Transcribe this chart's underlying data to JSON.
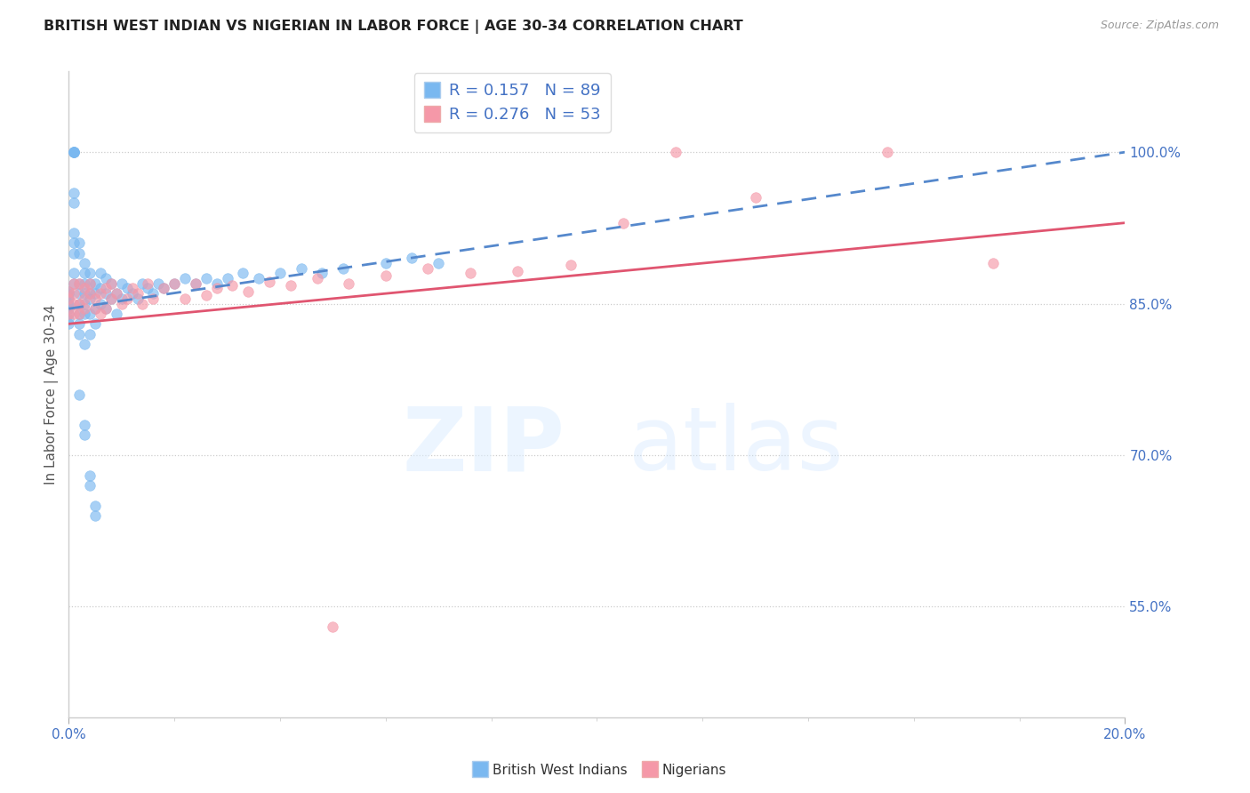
{
  "title": "BRITISH WEST INDIAN VS NIGERIAN IN LABOR FORCE | AGE 30-34 CORRELATION CHART",
  "source": "Source: ZipAtlas.com",
  "ylabel": "In Labor Force | Age 30-34",
  "r_bwi": 0.157,
  "n_bwi": 89,
  "r_nig": 0.276,
  "n_nig": 53,
  "blue_color": "#7ab8f0",
  "pink_color": "#f598a8",
  "blue_line_color": "#5588cc",
  "pink_line_color": "#e05570",
  "right_yticks": [
    0.55,
    0.7,
    0.85,
    1.0
  ],
  "right_ytick_labels": [
    "55.0%",
    "70.0%",
    "85.0%",
    "100.0%"
  ],
  "xlim": [
    0.0,
    0.2
  ],
  "ylim": [
    0.44,
    1.08
  ],
  "bwi_x": [
    0.0,
    0.0,
    0.0,
    0.0,
    0.0,
    0.0,
    0.0,
    0.0,
    0.0,
    0.0,
    0.001,
    0.001,
    0.001,
    0.001,
    0.001,
    0.001,
    0.001,
    0.001,
    0.001,
    0.001,
    0.001,
    0.001,
    0.002,
    0.002,
    0.002,
    0.002,
    0.002,
    0.002,
    0.002,
    0.002,
    0.003,
    0.003,
    0.003,
    0.003,
    0.003,
    0.003,
    0.003,
    0.004,
    0.004,
    0.004,
    0.004,
    0.004,
    0.004,
    0.005,
    0.005,
    0.005,
    0.005,
    0.006,
    0.006,
    0.006,
    0.007,
    0.007,
    0.007,
    0.008,
    0.008,
    0.009,
    0.009,
    0.01,
    0.01,
    0.011,
    0.012,
    0.013,
    0.014,
    0.015,
    0.016,
    0.017,
    0.018,
    0.02,
    0.022,
    0.024,
    0.026,
    0.028,
    0.03,
    0.033,
    0.036,
    0.04,
    0.044,
    0.048,
    0.052,
    0.06,
    0.065,
    0.07,
    0.002,
    0.003,
    0.003,
    0.004,
    0.004,
    0.005,
    0.005
  ],
  "bwi_y": [
    0.86,
    0.85,
    0.84,
    0.855,
    0.845,
    0.83,
    0.858,
    0.835,
    0.848,
    0.862,
    1.0,
    1.0,
    1.0,
    1.0,
    1.0,
    0.96,
    0.95,
    0.92,
    0.91,
    0.9,
    0.88,
    0.87,
    0.87,
    0.86,
    0.85,
    0.84,
    0.83,
    0.82,
    0.9,
    0.91,
    0.88,
    0.86,
    0.85,
    0.84,
    0.81,
    0.87,
    0.89,
    0.87,
    0.855,
    0.84,
    0.82,
    0.86,
    0.88,
    0.86,
    0.845,
    0.83,
    0.87,
    0.865,
    0.85,
    0.88,
    0.86,
    0.845,
    0.875,
    0.87,
    0.855,
    0.86,
    0.84,
    0.855,
    0.87,
    0.865,
    0.86,
    0.855,
    0.87,
    0.865,
    0.86,
    0.87,
    0.865,
    0.87,
    0.875,
    0.87,
    0.875,
    0.87,
    0.875,
    0.88,
    0.875,
    0.88,
    0.885,
    0.88,
    0.885,
    0.89,
    0.895,
    0.89,
    0.76,
    0.73,
    0.72,
    0.68,
    0.67,
    0.65,
    0.64
  ],
  "nig_x": [
    0.0,
    0.0,
    0.0,
    0.001,
    0.001,
    0.001,
    0.001,
    0.002,
    0.002,
    0.002,
    0.003,
    0.003,
    0.003,
    0.004,
    0.004,
    0.005,
    0.005,
    0.006,
    0.006,
    0.007,
    0.007,
    0.008,
    0.008,
    0.009,
    0.01,
    0.011,
    0.012,
    0.013,
    0.014,
    0.015,
    0.016,
    0.018,
    0.02,
    0.022,
    0.024,
    0.026,
    0.028,
    0.031,
    0.034,
    0.038,
    0.042,
    0.047,
    0.053,
    0.06,
    0.068,
    0.076,
    0.085,
    0.095,
    0.105,
    0.115,
    0.13,
    0.155,
    0.175
  ],
  "nig_y": [
    0.862,
    0.855,
    0.84,
    0.87,
    0.85,
    0.84,
    0.86,
    0.87,
    0.85,
    0.84,
    0.855,
    0.865,
    0.845,
    0.86,
    0.87,
    0.855,
    0.845,
    0.86,
    0.84,
    0.865,
    0.845,
    0.855,
    0.87,
    0.86,
    0.85,
    0.855,
    0.865,
    0.86,
    0.85,
    0.87,
    0.855,
    0.865,
    0.87,
    0.855,
    0.87,
    0.858,
    0.865,
    0.868,
    0.862,
    0.872,
    0.868,
    0.875,
    0.87,
    0.878,
    0.885,
    0.88,
    0.882,
    0.888,
    0.93,
    1.0,
    0.955,
    1.0,
    0.89
  ]
}
